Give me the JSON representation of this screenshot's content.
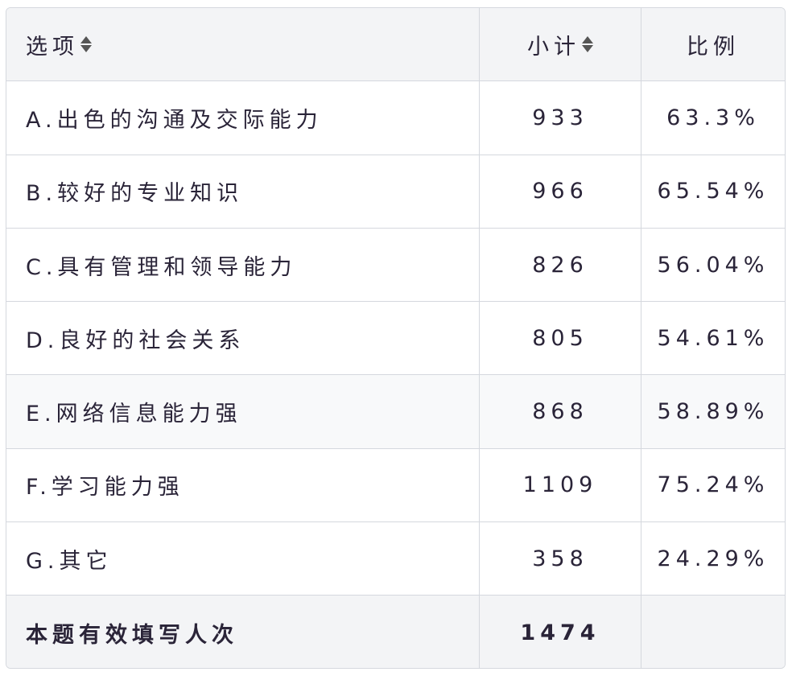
{
  "header": {
    "option": "选项",
    "subtotal": "小计",
    "ratio": "比例"
  },
  "rows": [
    {
      "option": "A.出色的沟通及交际能力",
      "count": "933",
      "ratio": "63.3%"
    },
    {
      "option": "B.较好的专业知识",
      "count": "966",
      "ratio": "65.54%"
    },
    {
      "option": "C.具有管理和领导能力",
      "count": "826",
      "ratio": "56.04%"
    },
    {
      "option": "D.良好的社会关系",
      "count": "805",
      "ratio": "54.61%"
    },
    {
      "option": "E.网络信息能力强",
      "count": "868",
      "ratio": "58.89%"
    },
    {
      "option": "F.学习能力强",
      "count": "1109",
      "ratio": "75.24%"
    },
    {
      "option": "G.其它",
      "count": "358",
      "ratio": "24.29%"
    }
  ],
  "footer": {
    "label": "本题有效填写人次",
    "count": "1474",
    "ratio": ""
  }
}
